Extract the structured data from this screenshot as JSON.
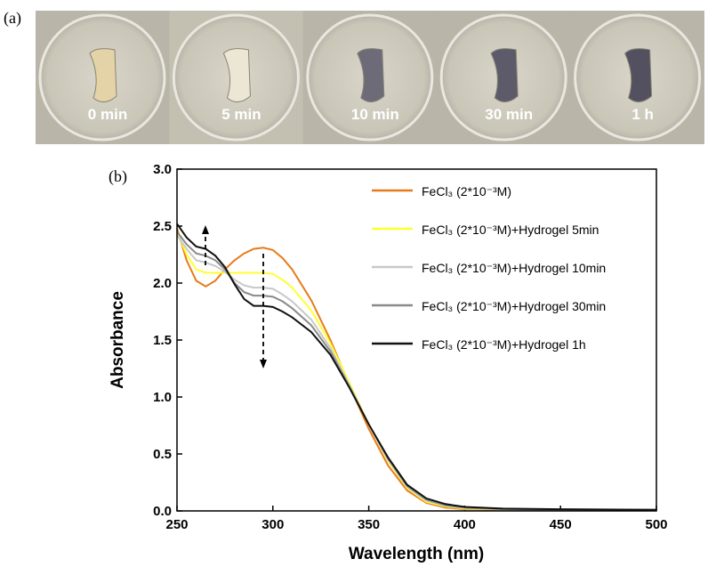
{
  "photo_panel": {
    "label": "(a)",
    "captions": [
      "0 min",
      "5 min",
      "10 min",
      "30 min",
      "1 h"
    ]
  },
  "chart_data": {
    "type": "line",
    "panel_label": "(b)",
    "x_label": "Wavelength (nm)",
    "y_label": "Absorbance",
    "x": [
      250,
      255,
      260,
      265,
      270,
      275,
      280,
      285,
      290,
      295,
      300,
      305,
      310,
      320,
      330,
      340,
      350,
      360,
      370,
      380,
      390,
      400,
      420,
      450,
      500
    ],
    "series": [
      {
        "name": "FeCl₃ (2*10⁻³M)",
        "color": "#e87a1a",
        "values": [
          2.48,
          2.2,
          2.02,
          1.97,
          2.02,
          2.12,
          2.2,
          2.26,
          2.3,
          2.31,
          2.29,
          2.22,
          2.12,
          1.85,
          1.5,
          1.1,
          0.72,
          0.4,
          0.18,
          0.07,
          0.03,
          0.015,
          0.01,
          0.01,
          0.01
        ]
      },
      {
        "name": "FeCl₃ (2*10⁻³M)+Hydrogel 5min",
        "color": "#ffff30",
        "values": [
          2.45,
          2.25,
          2.12,
          2.09,
          2.09,
          2.09,
          2.09,
          2.09,
          2.09,
          2.09,
          2.08,
          2.03,
          1.96,
          1.76,
          1.47,
          1.12,
          0.76,
          0.44,
          0.2,
          0.08,
          0.04,
          0.02,
          0.012,
          0.01,
          0.01
        ]
      },
      {
        "name": "FeCl₃ (2*10⁻³M)+Hydrogel 10min",
        "color": "#c8c8c8",
        "values": [
          2.42,
          2.3,
          2.2,
          2.18,
          2.15,
          2.1,
          2.03,
          1.98,
          1.96,
          1.96,
          1.95,
          1.9,
          1.84,
          1.68,
          1.43,
          1.1,
          0.76,
          0.45,
          0.21,
          0.09,
          0.045,
          0.025,
          0.015,
          0.01,
          0.01
        ]
      },
      {
        "name": "FeCl₃ (2*10⁻³M)+Hydrogel 30min",
        "color": "#8a8a8a",
        "values": [
          2.45,
          2.34,
          2.26,
          2.24,
          2.2,
          2.12,
          2.0,
          1.92,
          1.89,
          1.89,
          1.88,
          1.84,
          1.78,
          1.63,
          1.4,
          1.09,
          0.76,
          0.46,
          0.22,
          0.1,
          0.05,
          0.03,
          0.015,
          0.01,
          0.01
        ]
      },
      {
        "name": "FeCl₃ (2*10⁻³M)+Hydrogel 1h",
        "color": "#111111",
        "values": [
          2.52,
          2.4,
          2.32,
          2.3,
          2.24,
          2.14,
          1.99,
          1.86,
          1.8,
          1.8,
          1.79,
          1.75,
          1.7,
          1.57,
          1.37,
          1.08,
          0.76,
          0.47,
          0.23,
          0.11,
          0.06,
          0.035,
          0.02,
          0.015,
          0.01
        ]
      }
    ],
    "xlim": [
      250,
      500
    ],
    "xticks": [
      250,
      300,
      350,
      400,
      450,
      500
    ],
    "ylim": [
      0,
      3
    ],
    "yticks": [
      {
        "value": 0,
        "label": "0.0"
      },
      0.5,
      {
        "value": 1,
        "label": "1.0"
      },
      1.5,
      {
        "value": 2,
        "label": "2.0"
      },
      2.5,
      {
        "value": 3,
        "label": "3.0"
      }
    ],
    "legend": "upper right"
  }
}
